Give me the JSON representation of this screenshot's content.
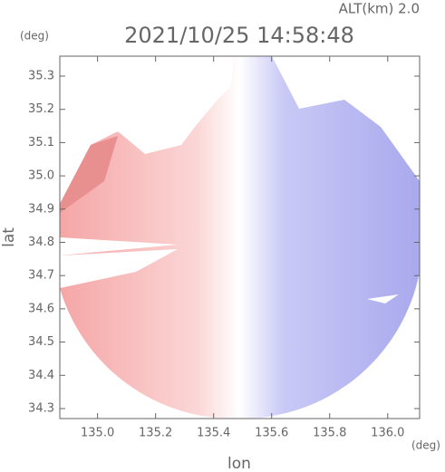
{
  "chart_data": {
    "type": "radar-image",
    "title": "2021/10/25 14:58:48",
    "subtitle": "ALT(km) 2.0",
    "x_label": "lon",
    "y_label": "lat",
    "x_unit": "(deg)",
    "y_unit": "(deg)",
    "xlim": [
      134.87,
      136.11
    ],
    "ylim": [
      34.27,
      35.36
    ],
    "xticks": [
      {
        "value": 135,
        "label": "135.0"
      },
      135.2,
      135.4,
      135.6,
      135.8,
      {
        "value": 136,
        "label": "136.0"
      }
    ],
    "yticks": [
      34.3,
      34.4,
      34.5,
      34.6,
      34.7,
      34.8,
      34.9,
      {
        "value": 35,
        "label": "35.0"
      },
      35.1,
      35.2,
      35.3
    ]
  }
}
